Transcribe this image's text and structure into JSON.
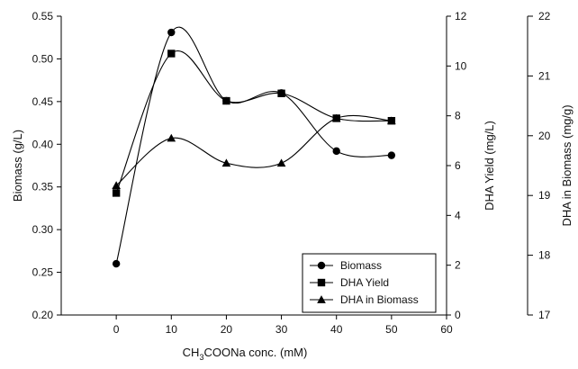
{
  "chart_data": {
    "type": "line",
    "smooth": true,
    "x": [
      0,
      10,
      20,
      30,
      40,
      50
    ],
    "xlim": [
      -10,
      60
    ],
    "xticks": [
      0,
      10,
      20,
      30,
      40,
      50,
      60
    ],
    "xlabel_main": "CH",
    "xlabel_sub": "3",
    "xlabel_rest": "COONa conc. (mM)",
    "axes": {
      "left": {
        "label": "Biomass (g/L)",
        "ylim": [
          0.2,
          0.55
        ],
        "ticks": [
          "0.20",
          "0.25",
          "0.30",
          "0.35",
          "0.40",
          "0.45",
          "0.50",
          "0.55"
        ]
      },
      "right": {
        "label": "DHA Yield (mg/L)",
        "ylim": [
          0,
          12
        ],
        "ticks": [
          "0",
          "2",
          "4",
          "6",
          "8",
          "10",
          "12"
        ]
      },
      "outer": {
        "label": "DHA in Biomass (mg/g)",
        "ylim": [
          17,
          22
        ],
        "ticks": [
          "17",
          "18",
          "19",
          "20",
          "21",
          "22"
        ]
      }
    },
    "series": [
      {
        "name": "Biomass",
        "axis": "left",
        "marker": "circle",
        "values": [
          0.26,
          0.531,
          0.451,
          0.46,
          0.392,
          0.387
        ]
      },
      {
        "name": "DHA Yield",
        "axis": "right",
        "marker": "square",
        "values": [
          4.9,
          10.5,
          8.6,
          8.9,
          7.9,
          7.8
        ]
      },
      {
        "name": "DHA in Biomass",
        "axis": "right",
        "marker": "triangle",
        "values": [
          5.2,
          7.1,
          6.1,
          6.1,
          7.9,
          7.8
        ]
      }
    ],
    "legend_position": "bottom-right",
    "grid": false
  }
}
